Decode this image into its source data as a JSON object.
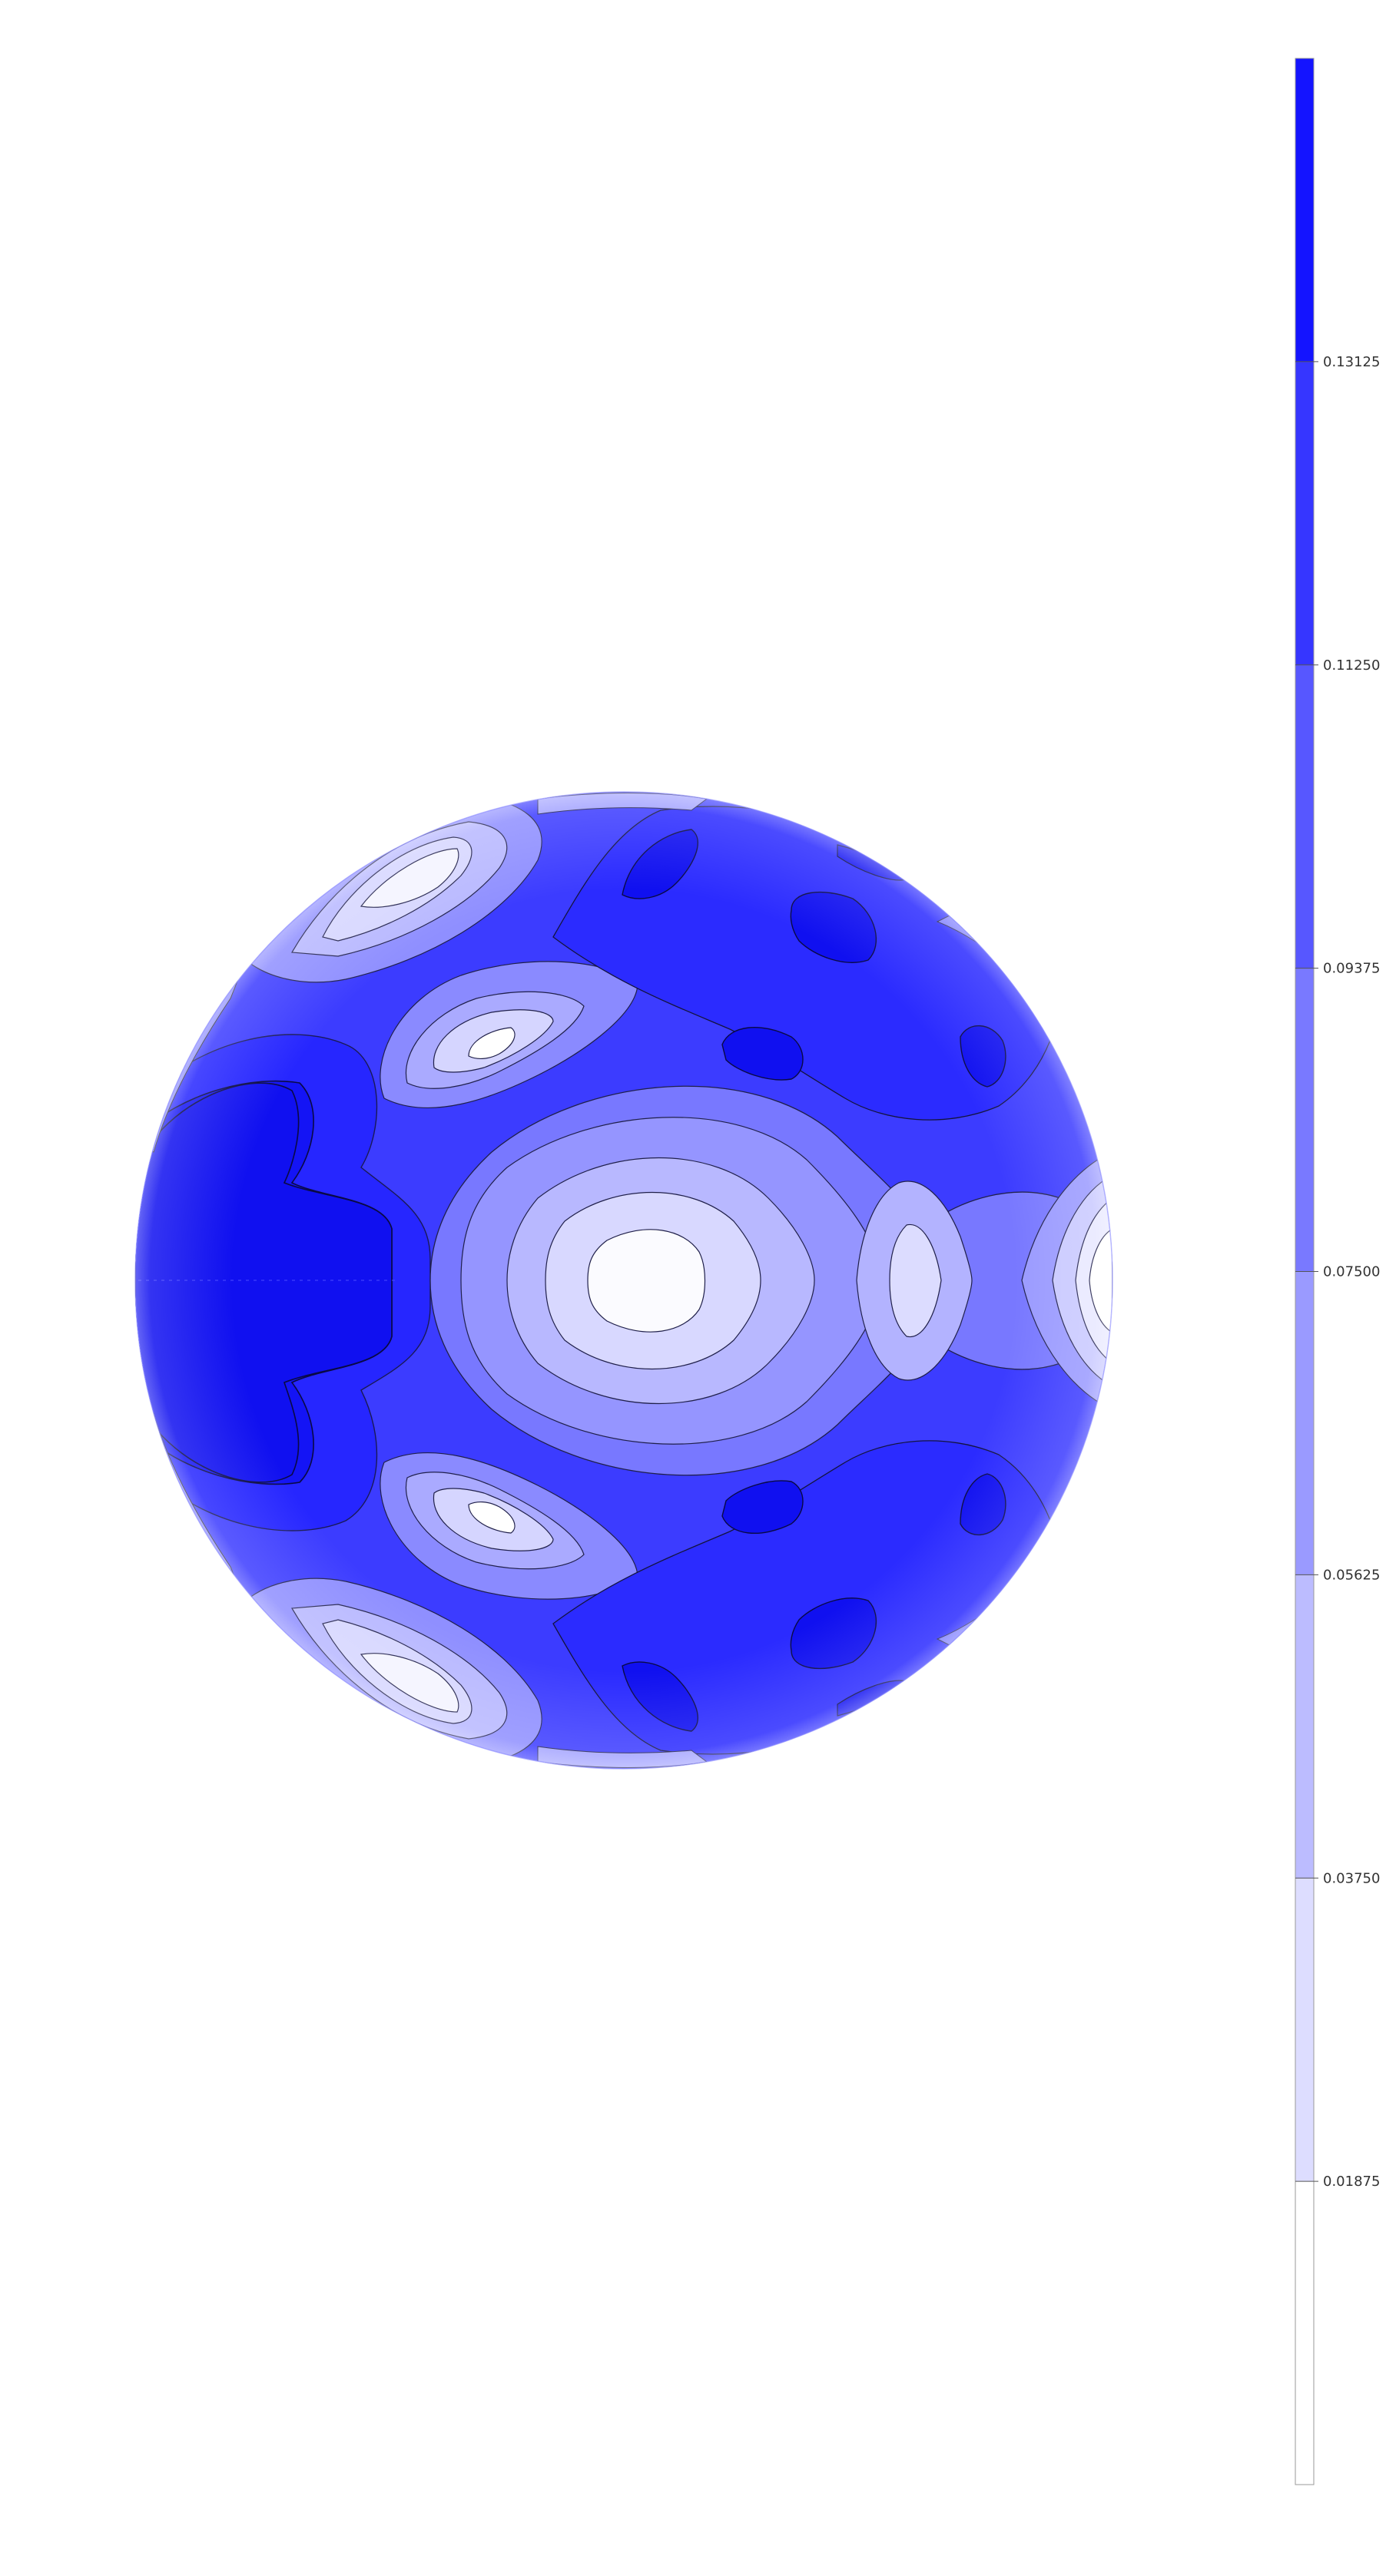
{
  "chart_data": {
    "type": "heatmap",
    "subtype": "spherical-contour",
    "title": "",
    "colormap": {
      "low": "#ffffff",
      "high": "#1414ff"
    },
    "colorbar": {
      "range": [
        0,
        0.15
      ],
      "levels": [
        0,
        0.01875,
        0.0375,
        0.05625,
        0.075,
        0.09375,
        0.1125,
        0.13125,
        0.15
      ],
      "tick_values": [
        0.01875,
        0.0375,
        0.05625,
        0.075,
        0.09375,
        0.1125,
        0.13125
      ],
      "tick_labels": [
        "0.01875",
        "0.03750",
        "0.05625",
        "0.07500",
        "0.09375",
        "0.11250",
        "0.13125"
      ]
    },
    "notes": "Contour-filled surface plotted on a sphere; values 0 (white) to 0.15 (saturated blue)."
  }
}
